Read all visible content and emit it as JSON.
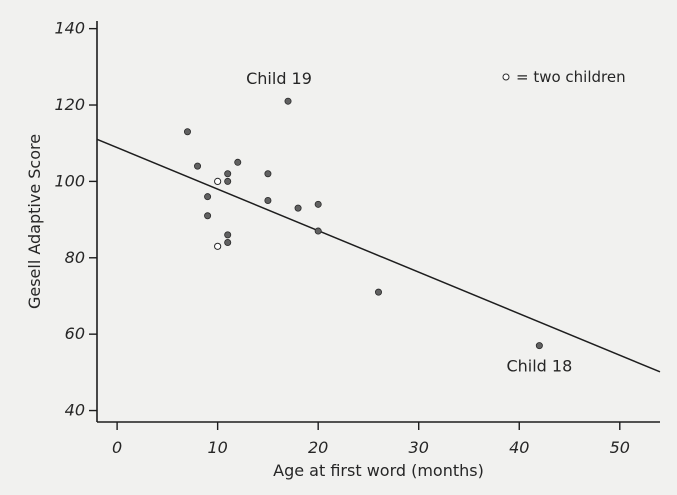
{
  "chart_data": {
    "type": "scatter",
    "xlabel": "Age at first word (months)",
    "ylabel": "Gesell Adaptive Score",
    "xlim": [
      -2,
      54
    ],
    "ylim": [
      37,
      142
    ],
    "x_ticks": [
      0,
      10,
      20,
      30,
      40,
      50
    ],
    "y_ticks": [
      40,
      60,
      80,
      100,
      120,
      140
    ],
    "x_tick_labels": [
      "0",
      "10",
      "20",
      "30",
      "40",
      "50"
    ],
    "y_tick_labels": [
      "40",
      "60",
      "80",
      "100",
      "120",
      "140"
    ],
    "grid": false,
    "legend": {
      "text": "= two children",
      "placement": "top-right",
      "marker": "open-circle"
    },
    "series": [
      {
        "marker": "filled-circle",
        "points": [
          {
            "x": 7,
            "y": 113
          },
          {
            "x": 8,
            "y": 104
          },
          {
            "x": 9,
            "y": 96
          },
          {
            "x": 9,
            "y": 91
          },
          {
            "x": 11,
            "y": 102
          },
          {
            "x": 11,
            "y": 100
          },
          {
            "x": 11,
            "y": 86
          },
          {
            "x": 11,
            "y": 84
          },
          {
            "x": 12,
            "y": 105
          },
          {
            "x": 15,
            "y": 102
          },
          {
            "x": 15,
            "y": 95
          },
          {
            "x": 17,
            "y": 121
          },
          {
            "x": 18,
            "y": 93
          },
          {
            "x": 20,
            "y": 94
          },
          {
            "x": 20,
            "y": 87
          },
          {
            "x": 26,
            "y": 71
          },
          {
            "x": 42,
            "y": 57
          }
        ]
      },
      {
        "marker": "open-circle",
        "points": [
          {
            "x": 10,
            "y": 100
          },
          {
            "x": 10,
            "y": 83
          }
        ]
      }
    ],
    "fit_line": {
      "x": [
        -2,
        54
      ],
      "y": [
        111.03,
        50.13
      ]
    },
    "annotations": [
      {
        "text": "Child 19",
        "x": 17,
        "y": 121
      },
      {
        "text": "Child 18",
        "x": 42,
        "y": 57
      }
    ]
  }
}
